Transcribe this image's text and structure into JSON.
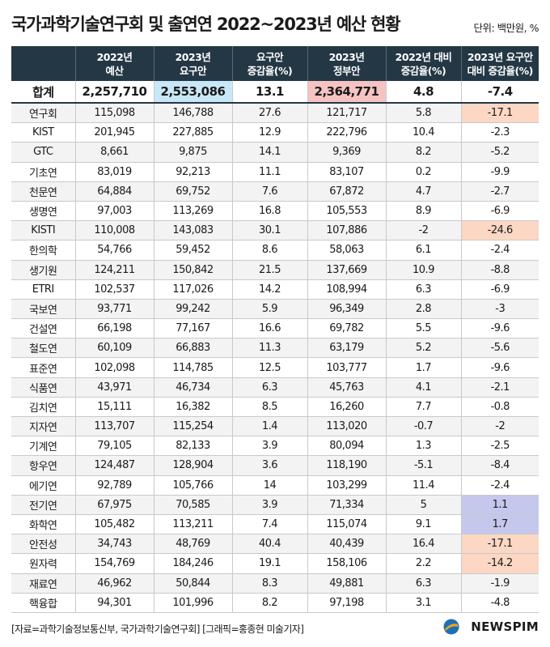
{
  "title": "국가과학기술연구회 및 출연연 2022~2023년 예산 현황",
  "unit": "단위: 백만원, %",
  "source": "[자료=과학기술정보통신부, 국가과학기술연구회] [그래픽=홍종현 미술기자]",
  "logo": "NEWSPIM",
  "colors": {
    "header": "#243745",
    "highlight_blue": "#c9e8f7",
    "highlight_pink": "#f6c3c3",
    "highlight_orange": "#fbd7c4",
    "highlight_purple": "#c5c8ec"
  },
  "chart_data": {
    "type": "table",
    "columns": [
      {
        "line1": "",
        "line2": ""
      },
      {
        "line1": "2022년",
        "line2": "예산"
      },
      {
        "line1": "2023년",
        "line2": "요구안"
      },
      {
        "line1": "요구안",
        "line2": "증감율(%)"
      },
      {
        "line1": "2023년",
        "line2": "정부안"
      },
      {
        "line1": "2022년 대비",
        "line2": "증감율(%)"
      },
      {
        "line1": "2023년 요구안",
        "line2": "대비 증감율(%)"
      }
    ],
    "total": {
      "name": "합계",
      "cells": [
        "2,257,710",
        "2,553,086",
        "13.1",
        "2,364,771",
        "4.8",
        "-7.4"
      ],
      "highlight": [
        "",
        "blue",
        "",
        "pink",
        "",
        ""
      ]
    },
    "rows": [
      {
        "name": "연구회",
        "cells": [
          "115,098",
          "146,788",
          "27.6",
          "121,717",
          "5.8",
          "-17.1"
        ],
        "highlight": "orange"
      },
      {
        "name": "KIST",
        "cells": [
          "201,945",
          "227,885",
          "12.9",
          "222,796",
          "10.4",
          "-2.3"
        ],
        "highlight": ""
      },
      {
        "name": "GTC",
        "cells": [
          "8,661",
          "9,875",
          "14.1",
          "9,369",
          "8.2",
          "-5.2"
        ],
        "highlight": ""
      },
      {
        "name": "기초연",
        "cells": [
          "83,019",
          "92,213",
          "11.1",
          "83,107",
          "0.2",
          "-9.9"
        ],
        "highlight": ""
      },
      {
        "name": "천문연",
        "cells": [
          "64,884",
          "69,752",
          "7.6",
          "67,872",
          "4.7",
          "-2.7"
        ],
        "highlight": ""
      },
      {
        "name": "생명연",
        "cells": [
          "97,003",
          "113,269",
          "16.8",
          "105,553",
          "8.9",
          "-6.9"
        ],
        "highlight": ""
      },
      {
        "name": "KISTI",
        "cells": [
          "110,008",
          "143,083",
          "30.1",
          "107,886",
          "-2",
          "-24.6"
        ],
        "highlight": "orange"
      },
      {
        "name": "한의학",
        "cells": [
          "54,766",
          "59,452",
          "8.6",
          "58,063",
          "6.1",
          "-2.4"
        ],
        "highlight": ""
      },
      {
        "name": "생기원",
        "cells": [
          "124,211",
          "150,842",
          "21.5",
          "137,669",
          "10.9",
          "-8.8"
        ],
        "highlight": ""
      },
      {
        "name": "ETRI",
        "cells": [
          "102,537",
          "117,026",
          "14.2",
          "108,994",
          "6.3",
          "-6.9"
        ],
        "highlight": ""
      },
      {
        "name": "국보연",
        "cells": [
          "93,771",
          "99,242",
          "5.9",
          "96,349",
          "2.8",
          "-3"
        ],
        "highlight": ""
      },
      {
        "name": "건설연",
        "cells": [
          "66,198",
          "77,167",
          "16.6",
          "69,782",
          "5.5",
          "-9.6"
        ],
        "highlight": ""
      },
      {
        "name": "철도연",
        "cells": [
          "60,109",
          "66,883",
          "11.3",
          "63,179",
          "5.2",
          "-5.6"
        ],
        "highlight": ""
      },
      {
        "name": "표준연",
        "cells": [
          "102,098",
          "114,785",
          "12.5",
          "103,777",
          "1.7",
          "-9.6"
        ],
        "highlight": ""
      },
      {
        "name": "식품연",
        "cells": [
          "43,971",
          "46,734",
          "6.3",
          "45,763",
          "4.1",
          "-2.1"
        ],
        "highlight": ""
      },
      {
        "name": "김치연",
        "cells": [
          "15,111",
          "16,382",
          "8.5",
          "16,260",
          "7.7",
          "-0.8"
        ],
        "highlight": ""
      },
      {
        "name": "지자연",
        "cells": [
          "113,707",
          "115,254",
          "1.4",
          "113,020",
          "-0.7",
          "-2"
        ],
        "highlight": ""
      },
      {
        "name": "기계연",
        "cells": [
          "79,105",
          "82,133",
          "3.9",
          "80,094",
          "1.3",
          "-2.5"
        ],
        "highlight": ""
      },
      {
        "name": "항우연",
        "cells": [
          "124,487",
          "128,904",
          "3.6",
          "118,190",
          "-5.1",
          "-8.4"
        ],
        "highlight": ""
      },
      {
        "name": "에기연",
        "cells": [
          "92,789",
          "105,766",
          "14",
          "103,299",
          "11.4",
          "-2.4"
        ],
        "highlight": ""
      },
      {
        "name": "전기연",
        "cells": [
          "67,975",
          "70,585",
          "3.9",
          "71,334",
          "5",
          "1.1"
        ],
        "highlight": "purple"
      },
      {
        "name": "화학연",
        "cells": [
          "105,482",
          "113,211",
          "7.4",
          "115,074",
          "9.1",
          "1.7"
        ],
        "highlight": "purple"
      },
      {
        "name": "안전성",
        "cells": [
          "34,743",
          "48,769",
          "40.4",
          "40,439",
          "16.4",
          "-17.1"
        ],
        "highlight": "orange"
      },
      {
        "name": "원자력",
        "cells": [
          "154,769",
          "184,246",
          "19.1",
          "158,106",
          "2.2",
          "-14.2"
        ],
        "highlight": "orange"
      },
      {
        "name": "재료연",
        "cells": [
          "46,962",
          "50,844",
          "8.3",
          "49,881",
          "6.3",
          "-1.9"
        ],
        "highlight": ""
      },
      {
        "name": "핵융합",
        "cells": [
          "94,301",
          "101,996",
          "8.2",
          "97,198",
          "3.1",
          "-4.8"
        ],
        "highlight": ""
      }
    ]
  }
}
